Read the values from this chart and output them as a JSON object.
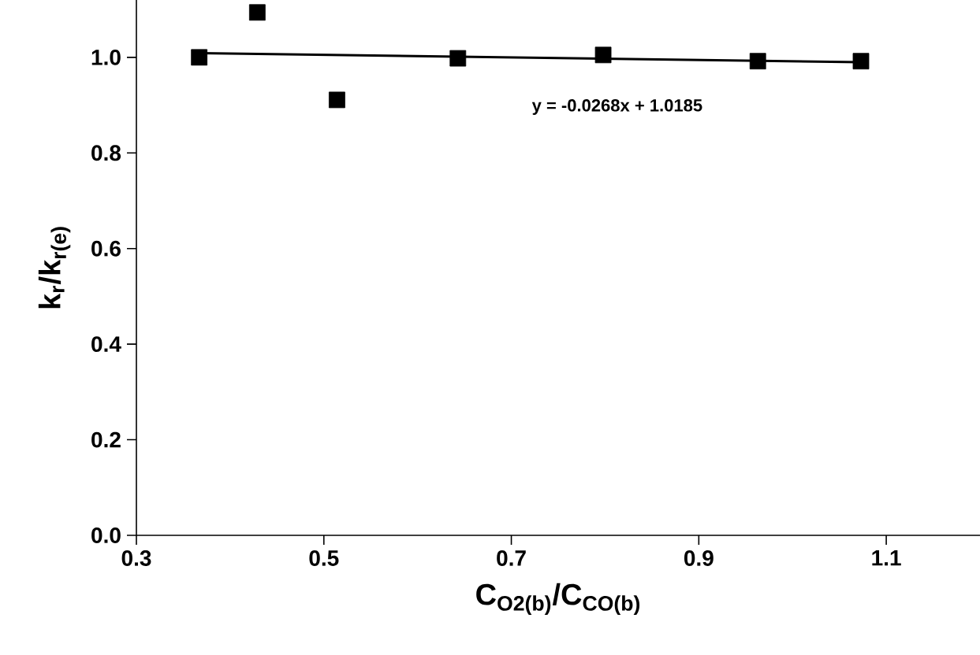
{
  "chart_data": {
    "type": "scatter",
    "xlabel": "C$_{O2(b)}$/C$_{CO(b)}$",
    "ylabel": "k$_{r}$/k$_{r(e)}$",
    "xlim": [
      0.3,
      1.2
    ],
    "ylim": [
      0,
      1.12
    ],
    "xticks": [
      0.3,
      0.5,
      0.7,
      0.9,
      1.1
    ],
    "yticks": [
      {
        "value": 0,
        "label": "0.0"
      },
      {
        "value": 0.2,
        "label": "0.2"
      },
      {
        "value": 0.4,
        "label": "0.4"
      },
      {
        "value": 0.6,
        "label": "0.6"
      },
      {
        "value": 0.8,
        "label": "0.8"
      },
      {
        "value": 1.0,
        "label": "1.0"
      }
    ],
    "series": [
      {
        "color": "#000000",
        "marker": "square",
        "x": [
          0.367,
          0.429,
          0.514,
          0.643,
          0.798,
          0.963,
          1.073
        ],
        "values": [
          1.0,
          1.094,
          0.911,
          0.998,
          1.005,
          0.992,
          0.992
        ]
      },
      {
        "type": "line",
        "color": "#000000",
        "marker": "none",
        "x": [
          0.367,
          1.073
        ],
        "values": [
          1.009,
          0.99
        ]
      }
    ],
    "annotations": [
      "y = -0.0268x + 1.0185"
    ]
  }
}
